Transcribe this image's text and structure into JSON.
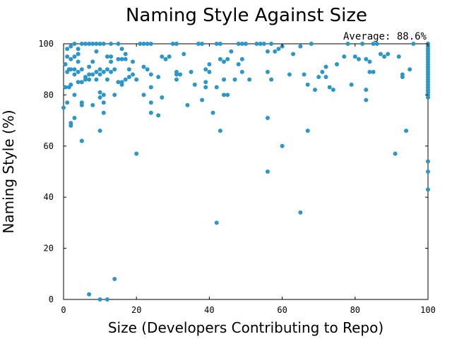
{
  "chart_data": {
    "type": "scatter",
    "title": "Naming Style Against Size",
    "xlabel": "Size (Developers Contributing to Repo)",
    "ylabel": "Naming Style (%)",
    "xlim": [
      0,
      100
    ],
    "ylim": [
      0,
      100
    ],
    "xticks": [
      "0",
      "20",
      "40",
      "60",
      "80",
      "100"
    ],
    "yticks": [
      "0",
      "20",
      "40",
      "60",
      "80",
      "100"
    ],
    "grid": false,
    "legend": "none",
    "annotation": "Average: 88.6%",
    "marker_color": "#2b96c8",
    "points": [
      [
        0,
        75
      ],
      [
        0.5,
        83
      ],
      [
        0.5,
        92
      ],
      [
        1,
        77
      ],
      [
        1,
        89
      ],
      [
        1,
        95
      ],
      [
        1,
        98
      ],
      [
        1.5,
        83
      ],
      [
        1.5,
        90
      ],
      [
        2,
        68
      ],
      [
        2,
        69
      ],
      [
        2,
        84
      ],
      [
        2,
        90
      ],
      [
        2,
        94
      ],
      [
        2,
        99
      ],
      [
        3,
        71
      ],
      [
        3,
        80
      ],
      [
        3,
        88
      ],
      [
        3,
        90
      ],
      [
        3,
        95
      ],
      [
        3,
        100
      ],
      [
        4,
        85
      ],
      [
        4,
        89
      ],
      [
        4,
        93
      ],
      [
        4,
        96
      ],
      [
        4,
        98
      ],
      [
        5,
        62
      ],
      [
        5,
        62
      ],
      [
        5,
        76
      ],
      [
        5,
        77
      ],
      [
        5,
        85
      ],
      [
        5,
        90
      ],
      [
        5,
        100
      ],
      [
        6,
        86
      ],
      [
        6,
        87
      ],
      [
        6,
        100
      ],
      [
        7,
        2
      ],
      [
        7,
        86
      ],
      [
        7,
        88
      ],
      [
        7,
        91
      ],
      [
        7,
        100
      ],
      [
        8,
        76
      ],
      [
        8,
        88
      ],
      [
        8,
        93
      ],
      [
        8,
        100
      ],
      [
        9,
        86
      ],
      [
        9,
        89
      ],
      [
        9,
        97
      ],
      [
        9,
        100
      ],
      [
        10,
        0
      ],
      [
        10,
        66
      ],
      [
        10,
        79
      ],
      [
        10,
        81
      ],
      [
        10,
        88
      ],
      [
        10,
        90
      ],
      [
        10,
        100
      ],
      [
        11,
        73
      ],
      [
        11,
        77
      ],
      [
        11,
        80
      ],
      [
        11,
        89
      ],
      [
        11,
        100
      ],
      [
        12,
        0
      ],
      [
        12,
        86
      ],
      [
        12,
        90
      ],
      [
        12,
        95
      ],
      [
        13,
        89
      ],
      [
        13,
        93
      ],
      [
        13,
        95
      ],
      [
        13,
        100
      ],
      [
        14,
        8
      ],
      [
        14,
        80
      ],
      [
        14,
        90
      ],
      [
        15,
        85
      ],
      [
        15,
        94
      ],
      [
        15,
        100
      ],
      [
        16,
        84
      ],
      [
        16,
        85
      ],
      [
        16,
        94
      ],
      [
        16,
        98
      ],
      [
        17,
        86
      ],
      [
        17,
        94
      ],
      [
        17,
        96
      ],
      [
        18,
        87
      ],
      [
        18,
        90
      ],
      [
        19,
        88
      ],
      [
        19,
        93
      ],
      [
        20,
        57
      ],
      [
        20,
        86
      ],
      [
        21,
        100
      ],
      [
        22,
        80
      ],
      [
        22,
        91
      ],
      [
        22,
        100
      ],
      [
        23,
        90
      ],
      [
        23,
        100
      ],
      [
        24,
        73
      ],
      [
        24,
        77
      ],
      [
        24,
        83
      ],
      [
        24,
        88
      ],
      [
        24,
        100
      ],
      [
        26,
        72
      ],
      [
        26,
        87
      ],
      [
        27,
        79
      ],
      [
        27,
        95
      ],
      [
        28,
        94
      ],
      [
        29,
        95
      ],
      [
        30,
        100
      ],
      [
        31,
        86
      ],
      [
        31,
        88
      ],
      [
        31,
        89
      ],
      [
        31,
        100
      ],
      [
        32,
        88
      ],
      [
        33,
        96
      ],
      [
        34,
        76
      ],
      [
        35,
        89
      ],
      [
        36,
        84
      ],
      [
        37,
        100
      ],
      [
        38,
        78
      ],
      [
        38,
        100
      ],
      [
        39,
        83
      ],
      [
        39,
        85
      ],
      [
        39,
        90
      ],
      [
        40,
        89
      ],
      [
        40,
        92
      ],
      [
        41,
        73
      ],
      [
        42,
        30
      ],
      [
        42,
        83
      ],
      [
        42,
        100
      ],
      [
        43,
        66
      ],
      [
        43,
        94
      ],
      [
        43,
        100
      ],
      [
        44,
        80
      ],
      [
        44,
        86
      ],
      [
        44,
        93
      ],
      [
        45,
        80
      ],
      [
        45,
        94
      ],
      [
        46,
        97
      ],
      [
        47,
        86
      ],
      [
        48,
        92
      ],
      [
        48,
        100
      ],
      [
        49,
        89
      ],
      [
        49,
        94
      ],
      [
        49,
        100
      ],
      [
        50,
        100
      ],
      [
        51,
        86
      ],
      [
        53,
        100
      ],
      [
        54,
        100
      ],
      [
        55,
        100
      ],
      [
        56,
        50
      ],
      [
        56,
        71
      ],
      [
        56,
        89
      ],
      [
        56,
        97
      ],
      [
        57,
        86
      ],
      [
        57,
        100
      ],
      [
        58,
        97
      ],
      [
        59,
        98
      ],
      [
        60,
        60
      ],
      [
        60,
        99
      ],
      [
        62,
        88
      ],
      [
        63,
        96
      ],
      [
        65,
        34
      ],
      [
        65,
        99
      ],
      [
        66,
        88
      ],
      [
        67,
        66
      ],
      [
        67,
        84
      ],
      [
        68,
        100
      ],
      [
        69,
        82
      ],
      [
        70,
        87
      ],
      [
        71,
        89
      ],
      [
        72,
        91
      ],
      [
        72,
        87
      ],
      [
        73,
        83
      ],
      [
        74,
        82
      ],
      [
        75,
        92
      ],
      [
        77,
        95
      ],
      [
        78,
        100
      ],
      [
        79,
        84
      ],
      [
        80,
        95
      ],
      [
        81,
        94
      ],
      [
        82,
        100
      ],
      [
        83,
        78
      ],
      [
        83,
        82
      ],
      [
        83,
        94
      ],
      [
        84,
        89
      ],
      [
        84,
        93
      ],
      [
        85,
        89
      ],
      [
        85,
        100
      ],
      [
        86,
        100
      ],
      [
        87,
        96
      ],
      [
        88,
        95
      ],
      [
        89,
        96
      ],
      [
        91,
        57
      ],
      [
        92,
        95
      ],
      [
        93,
        87
      ],
      [
        93,
        88
      ],
      [
        94,
        66
      ],
      [
        95,
        90
      ],
      [
        96,
        100
      ],
      [
        100,
        100
      ],
      [
        100,
        99
      ],
      [
        100,
        98
      ],
      [
        100,
        97
      ],
      [
        100,
        96
      ],
      [
        100,
        95
      ],
      [
        100,
        94
      ],
      [
        100,
        93
      ],
      [
        100,
        92
      ],
      [
        100,
        91
      ],
      [
        100,
        90
      ],
      [
        100,
        89
      ],
      [
        100,
        88
      ],
      [
        100,
        87
      ],
      [
        100,
        86
      ],
      [
        100,
        85
      ],
      [
        100,
        84
      ],
      [
        100,
        83
      ],
      [
        100,
        82
      ],
      [
        100,
        81
      ],
      [
        100,
        80
      ],
      [
        100,
        79
      ],
      [
        100,
        54
      ],
      [
        100,
        50
      ],
      [
        100,
        43
      ]
    ]
  }
}
